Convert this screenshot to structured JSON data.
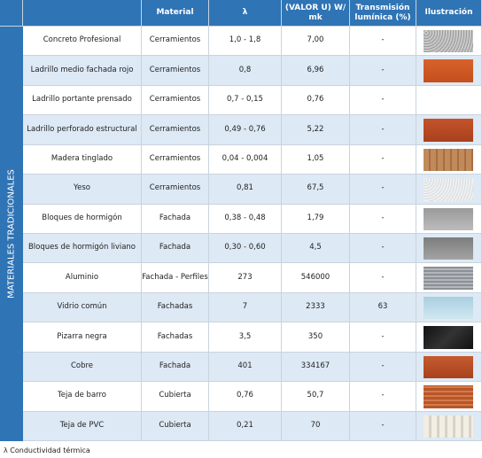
{
  "header": {
    "columns": [
      "Material",
      "λ",
      "(VALOR U) W/ mk",
      "Transmisión lumínica (%)",
      "Ilustración"
    ]
  },
  "side_label": "MATERIALES TRADICIONALES",
  "table": {
    "rows": [
      [
        "Concreto Profesional",
        "Cerramientos",
        "1,0 - 1,8",
        "7,00",
        "-"
      ],
      [
        "Ladrillo medio fachada rojo",
        "Cerramientos",
        "0,8",
        "6,96",
        "-"
      ],
      [
        "Ladrillo portante prensado",
        "Cerramientos",
        "0,7 - 0,15",
        "0,76",
        "-"
      ],
      [
        "Ladrillo perforado estructural",
        "Cerramientos",
        "0,49 - 0,76",
        "5,22",
        "-"
      ],
      [
        "Madera tinglado",
        "Cerramientos",
        "0,04 - 0,004",
        "1,05",
        "-"
      ],
      [
        "Yeso",
        "Cerramientos",
        "0,81",
        "67,5",
        "-"
      ],
      [
        "Bloques de hormigón",
        "Fachada",
        "0,38 - 0,48",
        "1,79",
        "-"
      ],
      [
        "Bloques de hormigón liviano",
        "Fachada",
        "0,30 - 0,60",
        "4,5",
        "-"
      ],
      [
        "Aluminio",
        "Fachada - Perfiles",
        "273",
        "546000",
        "-"
      ],
      [
        "Vidrio común",
        "Fachadas",
        "7",
        "2333",
        "63"
      ],
      [
        "Pizarra negra",
        "Fachadas",
        "3,5",
        "350",
        "-"
      ],
      [
        "Cobre",
        "Fachada",
        "401",
        "334167",
        "-"
      ],
      [
        "Teja de barro",
        "Cubierta",
        "0,76",
        "50,7",
        "-"
      ],
      [
        "Teja de PVC",
        "Cubierta",
        "0,21",
        "70",
        "-"
      ]
    ]
  },
  "footnote": "λ Conductividad térmica"
}
